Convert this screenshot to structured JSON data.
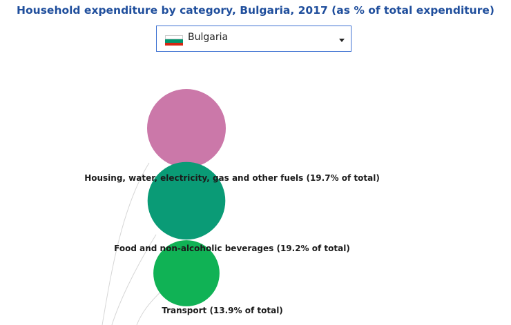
{
  "chart_data": {
    "type": "bubble",
    "title": "Household expenditure by category, Bulgaria, 2017 (as % of total expenditure)",
    "country": "Bulgaria",
    "unit": "% of total expenditure",
    "categories": [
      {
        "name": "Housing, water, electricity, gas and other fuels",
        "value": 19.7,
        "label": "Housing, water, electricity, gas and other fuels (19.7% of total)",
        "color": "#cb78a9"
      },
      {
        "name": "Food and non-alcoholic beverages",
        "value": 19.2,
        "label": "Food and non-alcoholic beverages (19.2% of total)",
        "color": "#0a9b76"
      },
      {
        "name": "Transport",
        "value": 13.9,
        "label": "Transport (13.9% of total)",
        "color": "#10b255"
      }
    ]
  },
  "selector": {
    "selected": "Bulgaria",
    "flag_colors": [
      "#ffffff",
      "#00966e",
      "#d62612"
    ]
  }
}
